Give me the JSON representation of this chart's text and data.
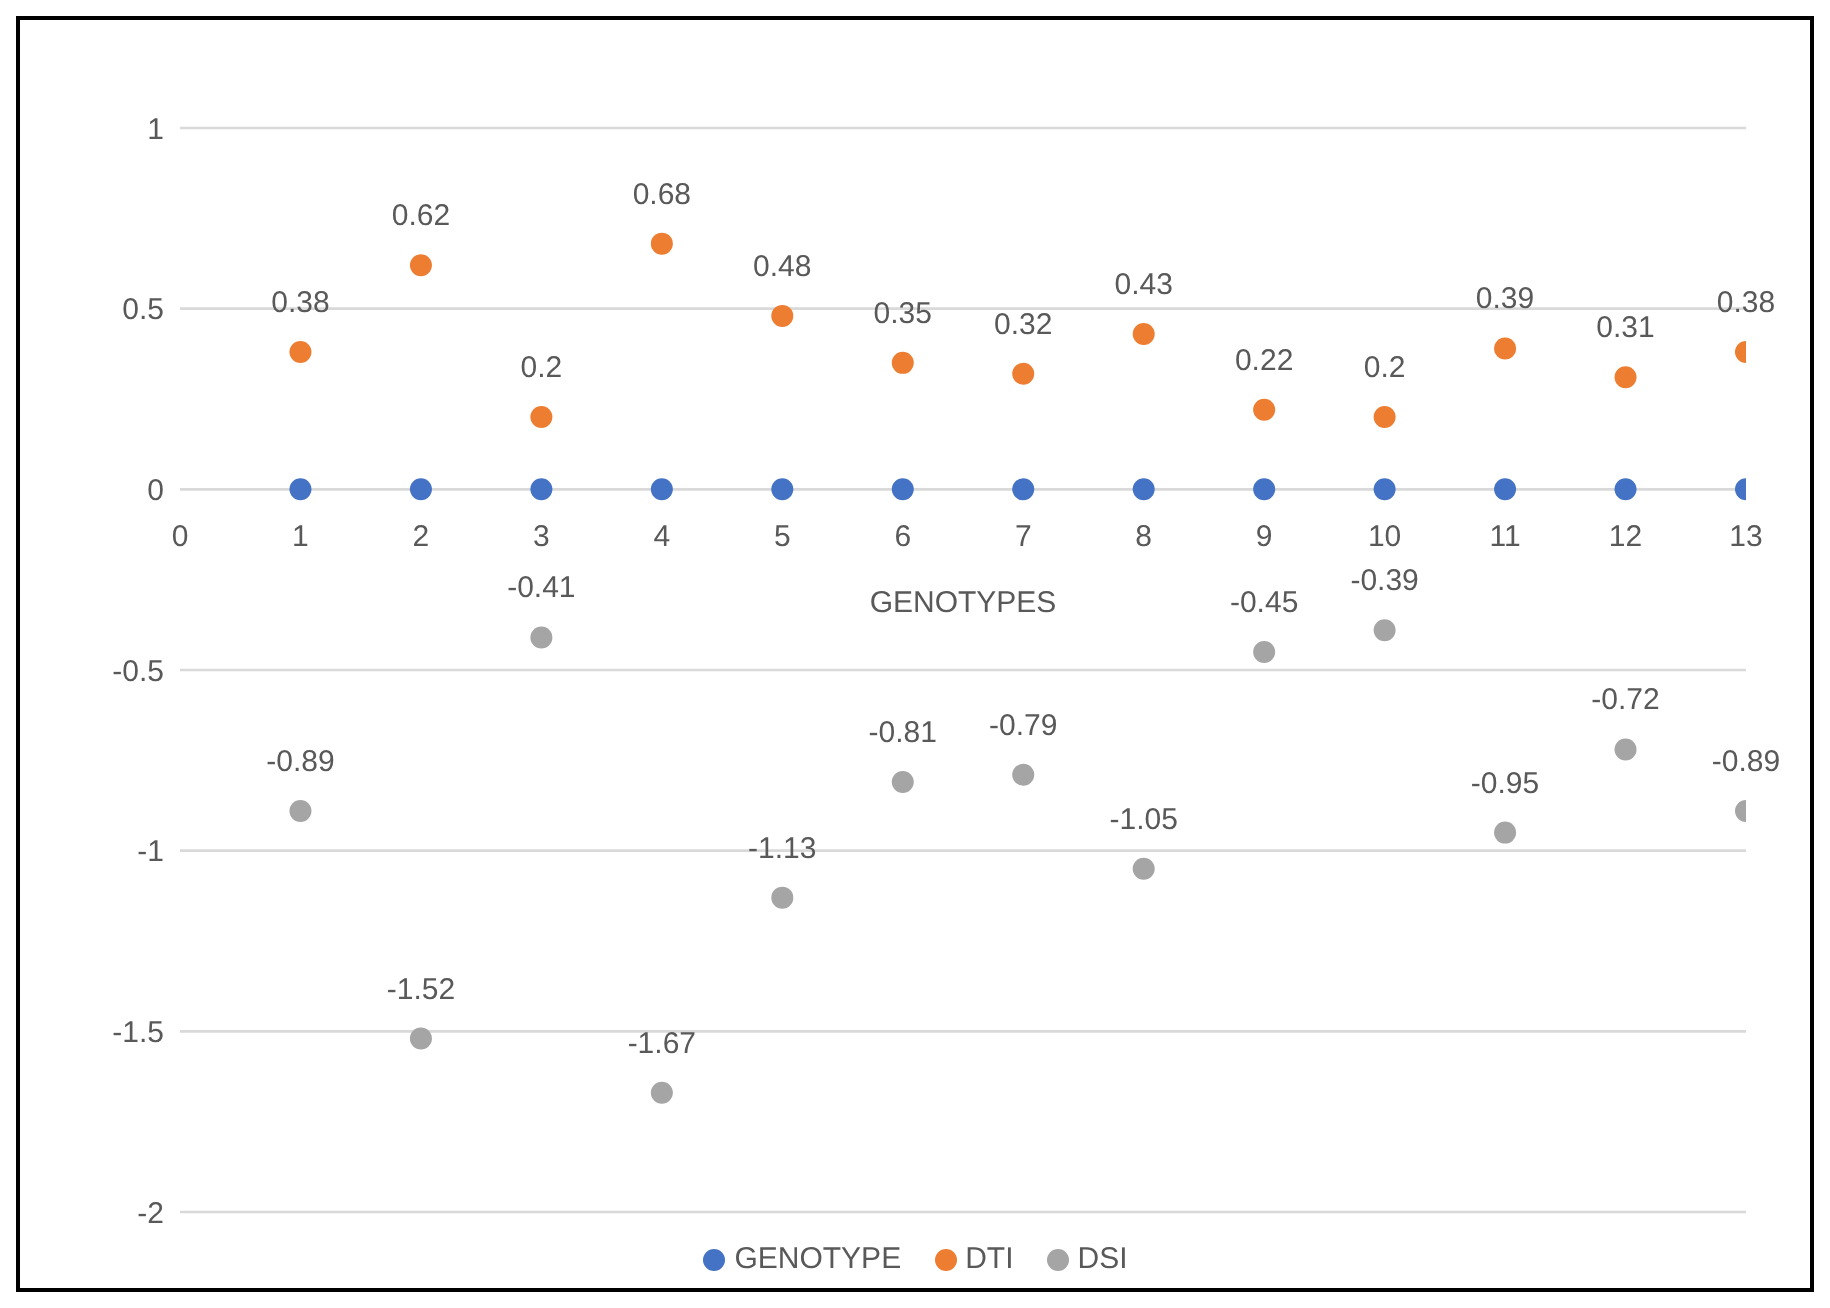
{
  "chart_data": {
    "type": "scatter",
    "xlabel": "GENOTYPES",
    "x": [
      1,
      2,
      3,
      4,
      5,
      6,
      7,
      8,
      9,
      10,
      11,
      12,
      13
    ],
    "series": [
      {
        "name": "GENOTYPE",
        "color": "#4472c4",
        "values": [
          0,
          0,
          0,
          0,
          0,
          0,
          0,
          0,
          0,
          0,
          0,
          0,
          0
        ]
      },
      {
        "name": "DTI",
        "color": "#ed7d31",
        "values": [
          0.38,
          0.62,
          0.2,
          0.68,
          0.48,
          0.35,
          0.32,
          0.43,
          0.22,
          0.2,
          0.39,
          0.31,
          0.38
        ],
        "value_labels": [
          "0.38",
          "0.62",
          "0.2",
          "0.68",
          "0.48",
          "0.35",
          "0.32",
          "0.43",
          "0.22",
          "0.2",
          "0.39",
          "0.31",
          "0.38"
        ]
      },
      {
        "name": "DSI",
        "color": "#a5a5a5",
        "values": [
          -0.89,
          -1.52,
          -0.41,
          -1.67,
          -1.13,
          -0.81,
          -0.79,
          -1.05,
          -0.45,
          -0.39,
          -0.95,
          -0.72,
          -0.89
        ],
        "value_labels": [
          "-0.89",
          "-1.52",
          "-0.41",
          "-1.67",
          "-1.13",
          "-0.81",
          "-0.79",
          "-1.05",
          "-0.45",
          "-0.39",
          "-0.95",
          "-0.72",
          "-0.89"
        ]
      }
    ],
    "xlim": [
      0,
      13
    ],
    "xticks": [
      0,
      1,
      2,
      3,
      4,
      5,
      6,
      7,
      8,
      9,
      10,
      11,
      12,
      13
    ],
    "ylim": [
      -2,
      1
    ],
    "yticks": [
      -2,
      -1.5,
      -1,
      -0.5,
      0,
      0.5,
      1
    ],
    "grid": "y",
    "legend": "bottom",
    "marker": "circle"
  }
}
